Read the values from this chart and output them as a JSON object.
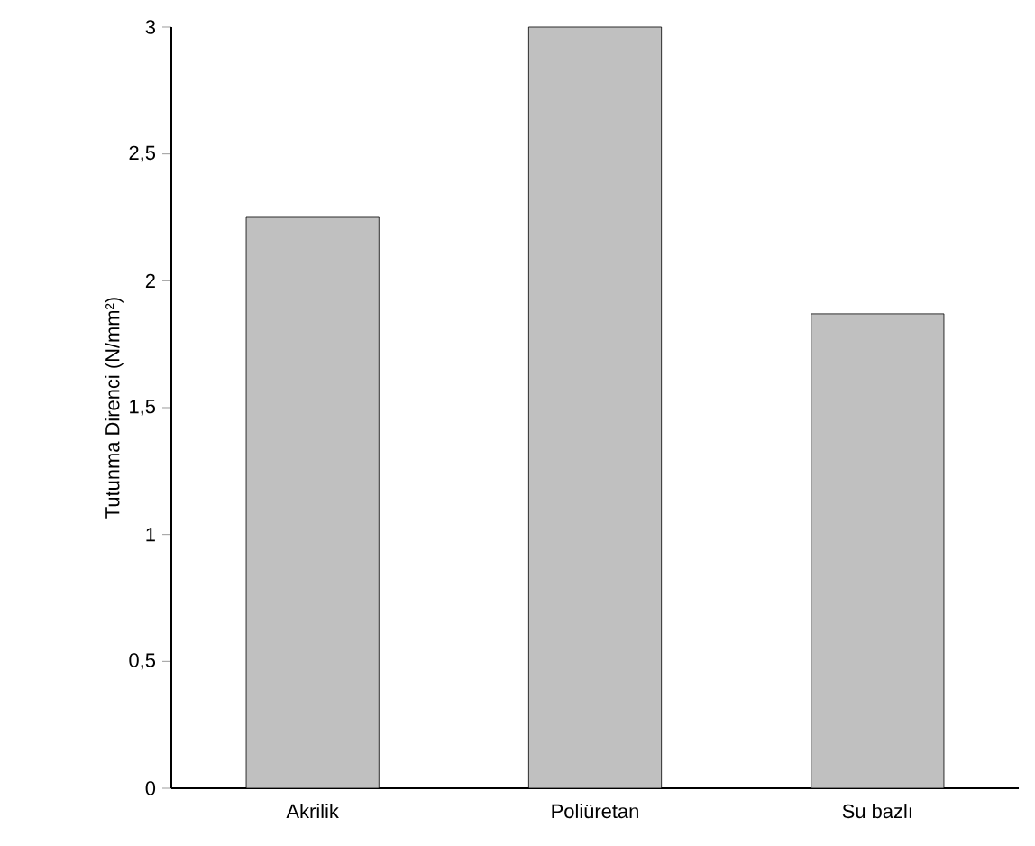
{
  "chart_data": {
    "type": "bar",
    "ylabel": "Tutunma Direnci (N/mm²)",
    "categories": [
      "Akrilik",
      "Poliüretan",
      "Su bazlı"
    ],
    "values": [
      2.25,
      3,
      1.87
    ],
    "color": "#c0c0c0",
    "ylim": [
      0,
      3
    ],
    "yticks": [
      0,
      {
        "value": 0.5,
        "label": "0,5"
      },
      1,
      {
        "value": 1.5,
        "label": "1,5"
      },
      2,
      {
        "value": 2.5,
        "label": "2,5"
      },
      3
    ],
    "grid": false
  }
}
